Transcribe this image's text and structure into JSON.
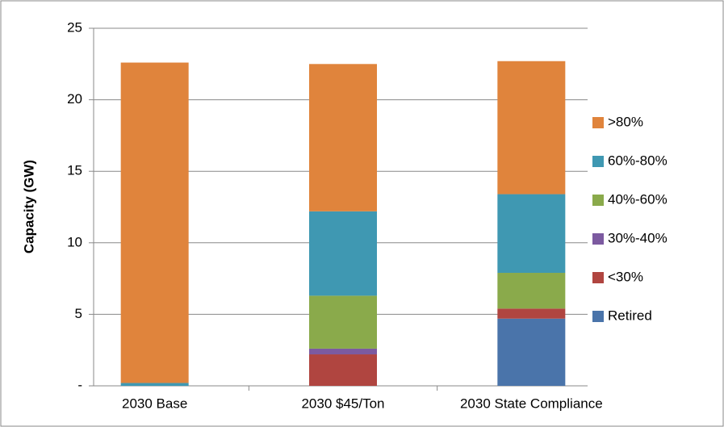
{
  "chart_data": {
    "type": "stacked_bar",
    "y_label": "Capacity (GW)",
    "categories": [
      "2030 Base",
      "2030 $45/Ton",
      "2030 State Compliance"
    ],
    "series": [
      {
        "name": "Retired",
        "color": "#4a74aa",
        "values": [
          0,
          0,
          4.7
        ]
      },
      {
        "name": "<30%",
        "color": "#b04540",
        "values": [
          0,
          2.2,
          0.7
        ]
      },
      {
        "name": "30%-40%",
        "color": "#7c5aa0",
        "values": [
          0,
          0.4,
          0
        ]
      },
      {
        "name": "40%-60%",
        "color": "#8aaa4b",
        "values": [
          0,
          3.7,
          2.5
        ]
      },
      {
        "name": "60%-80%",
        "color": "#3f98b2",
        "values": [
          0.2,
          5.9,
          5.5
        ]
      },
      {
        "name": ">80%",
        "color": "#e0843c",
        "values": [
          22.4,
          10.3,
          9.3
        ]
      }
    ],
    "ylim": [
      0,
      25
    ],
    "yticks": [
      {
        "value": 0,
        "label": "-"
      },
      5,
      10,
      15,
      20,
      25
    ],
    "grid": true,
    "legend": "right"
  }
}
